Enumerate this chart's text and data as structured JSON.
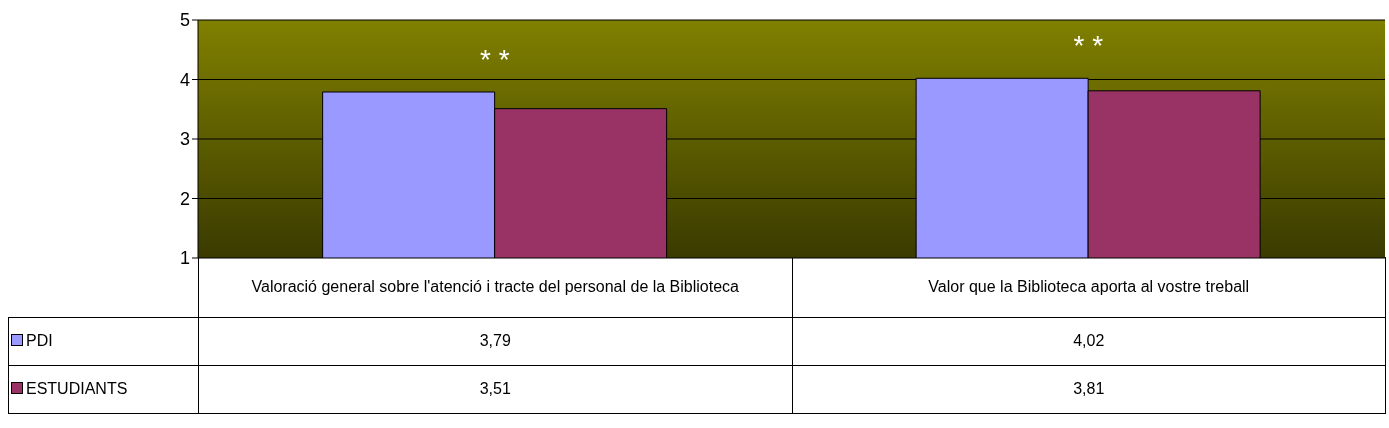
{
  "chart_data": {
    "type": "bar",
    "categories": [
      "Valoració general sobre l'atenció i tracte del personal de la Biblioteca",
      "Valor que la Biblioteca aporta al vostre treball"
    ],
    "series": [
      {
        "name": "PDI",
        "color": "#9999ff",
        "values": [
          3.79,
          4.02
        ],
        "value_labels": [
          "3,79",
          "4,02"
        ]
      },
      {
        "name": "ESTUDIANTS",
        "color": "#993366",
        "values": [
          3.51,
          3.81
        ],
        "value_labels": [
          "3,51",
          "3,81"
        ]
      }
    ],
    "ylim": [
      1,
      5
    ],
    "yticks": [
      1,
      2,
      3,
      4,
      5
    ],
    "grid": "y",
    "legend": "bottom left",
    "annotations": [
      "* *",
      "* *"
    ]
  }
}
